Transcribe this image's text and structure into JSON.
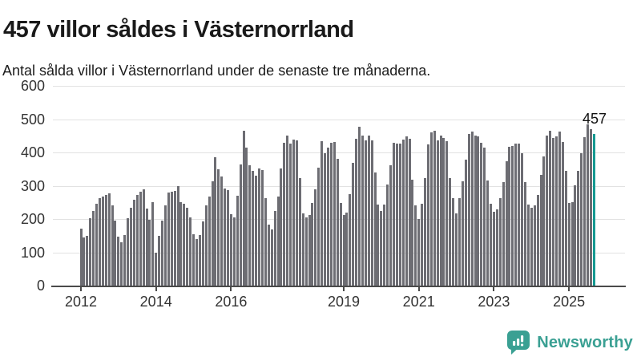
{
  "header": {
    "title": "457 villor såldes i Västernorrland",
    "subtitle": "Antal sålda villor i Västernorrland under de senaste tre månaderna."
  },
  "chart_data": {
    "type": "bar",
    "title": "457 villor såldes i Västernorrland",
    "subtitle": "Antal sålda villor i Västernorrland under de senaste tre månaderna.",
    "xlabel": "",
    "ylabel": "",
    "ylim": [
      0,
      600
    ],
    "grid": true,
    "y_ticks": [
      0,
      100,
      200,
      300,
      400,
      500,
      600
    ],
    "x_tick_years": [
      2012,
      2014,
      2016,
      2019,
      2021,
      2023,
      2025
    ],
    "frequency": "monthly",
    "start": "2012-01",
    "end": "2025-09",
    "values": [
      172,
      145,
      150,
      203,
      225,
      245,
      264,
      268,
      272,
      277,
      242,
      196,
      148,
      130,
      152,
      202,
      235,
      258,
      272,
      282,
      290,
      232,
      198,
      252,
      100,
      150,
      196,
      242,
      280,
      282,
      284,
      300,
      252,
      246,
      234,
      204,
      154,
      140,
      152,
      194,
      240,
      268,
      314,
      385,
      350,
      328,
      292,
      288,
      215,
      206,
      270,
      364,
      466,
      416,
      362,
      344,
      330,
      352,
      348,
      264,
      184,
      170,
      224,
      268,
      352,
      430,
      452,
      428,
      440,
      436,
      322,
      216,
      205,
      212,
      248,
      290,
      355,
      435,
      398,
      415,
      430,
      432,
      380,
      248,
      212,
      220,
      274,
      368,
      442,
      478,
      452,
      436,
      450,
      436,
      340,
      244,
      224,
      244,
      304,
      362,
      430,
      426,
      428,
      438,
      448,
      442,
      318,
      242,
      200,
      246,
      324,
      424,
      460,
      466,
      436,
      452,
      444,
      434,
      322,
      264,
      218,
      262,
      314,
      378,
      456,
      462,
      452,
      448,
      430,
      416,
      316,
      246,
      222,
      230,
      264,
      312,
      374,
      418,
      420,
      426,
      428,
      398,
      312,
      244,
      234,
      240,
      272,
      334,
      388,
      452,
      466,
      444,
      448,
      463,
      432,
      345,
      248,
      252,
      302,
      345,
      397,
      447,
      484,
      470,
      457
    ],
    "highlight": {
      "index": 164,
      "value": 457,
      "label": "457"
    },
    "colors": {
      "bar": "#6d6d73",
      "highlight_bar": "#169a92",
      "grid": "#e2e2e2",
      "axis": "#4b4b4b",
      "tick_text": "#333333",
      "label_text": "#111111"
    }
  },
  "footer": {
    "brand": "Newsworthy",
    "logo_color": "#3aa093"
  }
}
